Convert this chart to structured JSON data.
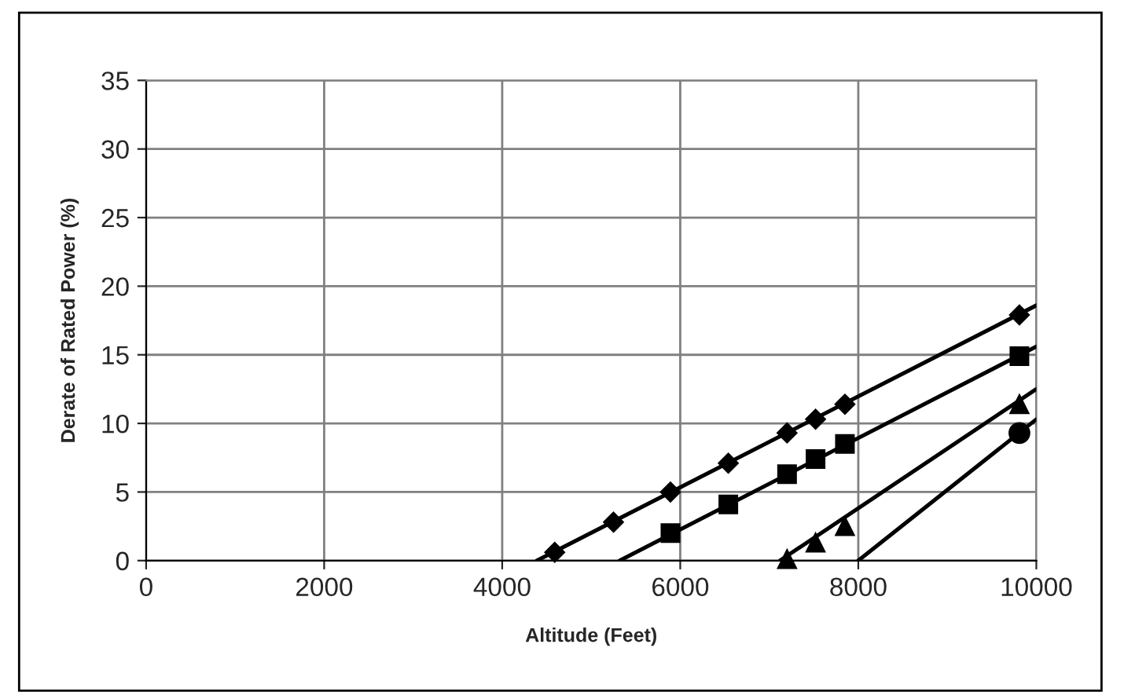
{
  "chart_data": {
    "type": "scatter",
    "xlabel": "Altitude (Feet)",
    "ylabel": "Derate of Rated Power (%)",
    "xlim": [
      0,
      10000
    ],
    "ylim": [
      0,
      35
    ],
    "xticks": [
      0,
      2000,
      4000,
      6000,
      8000,
      10000
    ],
    "yticks": [
      0,
      5,
      10,
      15,
      20,
      25,
      30,
      35
    ],
    "grid": true,
    "legend": false,
    "series": [
      {
        "marker": "diamond",
        "color": "#000000",
        "x": [
          4590,
          5250,
          5890,
          6540,
          7200,
          7520,
          7850,
          9810
        ],
        "values": [
          0.6,
          2.8,
          5.0,
          7.1,
          9.3,
          10.3,
          11.4,
          17.9
        ]
      },
      {
        "marker": "square",
        "color": "#000000",
        "x": [
          5890,
          6540,
          7200,
          7520,
          7850,
          9810
        ],
        "values": [
          2.0,
          4.1,
          6.3,
          7.4,
          8.5,
          14.9
        ]
      },
      {
        "marker": "triangle",
        "color": "#000000",
        "x": [
          7200,
          7520,
          7850,
          9810
        ],
        "values": [
          0.1,
          1.3,
          2.5,
          11.4
        ]
      },
      {
        "marker": "circle",
        "color": "#000000",
        "x": [
          9810
        ],
        "values": [
          9.3
        ]
      },
      {
        "type": "line",
        "marker": "none",
        "line_style": "solid",
        "color": "#000000",
        "x": [
          4390,
          10000
        ],
        "values": [
          0,
          18.6
        ]
      },
      {
        "type": "line",
        "marker": "none",
        "line_style": "solid",
        "color": "#000000",
        "x": [
          5320,
          10000
        ],
        "values": [
          0,
          15.6
        ]
      },
      {
        "type": "line",
        "marker": "none",
        "line_style": "solid",
        "color": "#000000",
        "x": [
          7120,
          10000
        ],
        "values": [
          0,
          12.5
        ]
      },
      {
        "type": "line",
        "marker": "none",
        "line_style": "solid",
        "color": "#000000",
        "x": [
          8000,
          10000
        ],
        "values": [
          0,
          10.3
        ]
      }
    ]
  }
}
